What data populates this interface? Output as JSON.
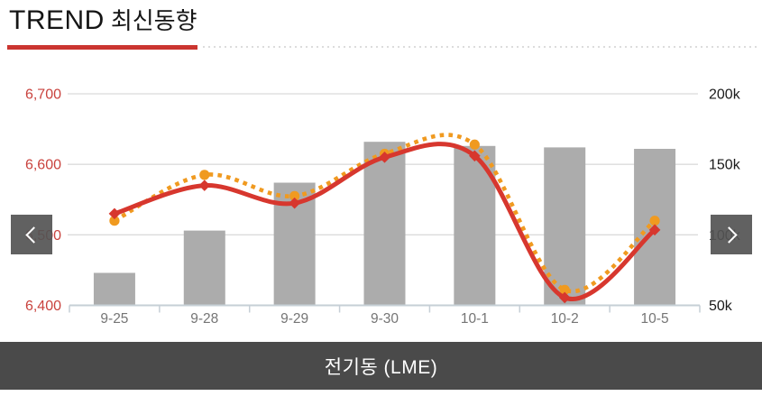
{
  "header": {
    "title_en": "TREND",
    "title_ko": "최신동향",
    "accent_color": "#cb3530"
  },
  "nav": {
    "prev": "previous",
    "next": "next"
  },
  "footer": {
    "label": "전기동 (LME)",
    "bg_color": "#4a4a4a"
  },
  "chart_data": {
    "type": "bar",
    "subtype": "combo-bar-line",
    "title": "전기동 (LME) 최신동향",
    "categories": [
      "9-25",
      "9-28",
      "9-29",
      "9-30",
      "10-1",
      "10-2",
      "10-5"
    ],
    "series": [
      {
        "name": "volume-bars",
        "type": "bar",
        "axis": "right",
        "color": "#acacac",
        "values": [
          73000,
          103000,
          137000,
          166000,
          163000,
          162000,
          161000
        ]
      },
      {
        "name": "price-dotted-line",
        "type": "line",
        "style": "dotted",
        "marker": "circle",
        "axis": "left",
        "color": "#f09a20",
        "values": [
          6520,
          6585,
          6555,
          6615,
          6628,
          6422,
          6520
        ]
      },
      {
        "name": "price-solid-line",
        "type": "line",
        "style": "solid",
        "marker": "diamond",
        "axis": "left",
        "color": "#d7372e",
        "values": [
          6530,
          6570,
          6545,
          6610,
          6612,
          6411,
          6507
        ]
      }
    ],
    "left_axis": {
      "min": 6400,
      "max": 6700,
      "label_color": "#c9423d",
      "ticks": [
        {
          "value": 6700,
          "label": "6,700"
        },
        {
          "value": 6600,
          "label": "6,600"
        },
        {
          "value": 6500,
          "label": "6,500"
        },
        {
          "value": 6400,
          "label": "6,400"
        }
      ]
    },
    "right_axis": {
      "min": 50000,
      "max": 200000,
      "label_color": "#1a1a1a",
      "ticks": [
        {
          "value": 200000,
          "label": "200k"
        },
        {
          "value": 150000,
          "label": "150k"
        },
        {
          "value": 100000,
          "label": "100k"
        },
        {
          "value": 50000,
          "label": "50k"
        }
      ]
    },
    "x_label_color": "#757575",
    "grid": true,
    "grid_color": "#dbdbdb",
    "axisline_color": "#c6cfd6",
    "legend": "none"
  }
}
